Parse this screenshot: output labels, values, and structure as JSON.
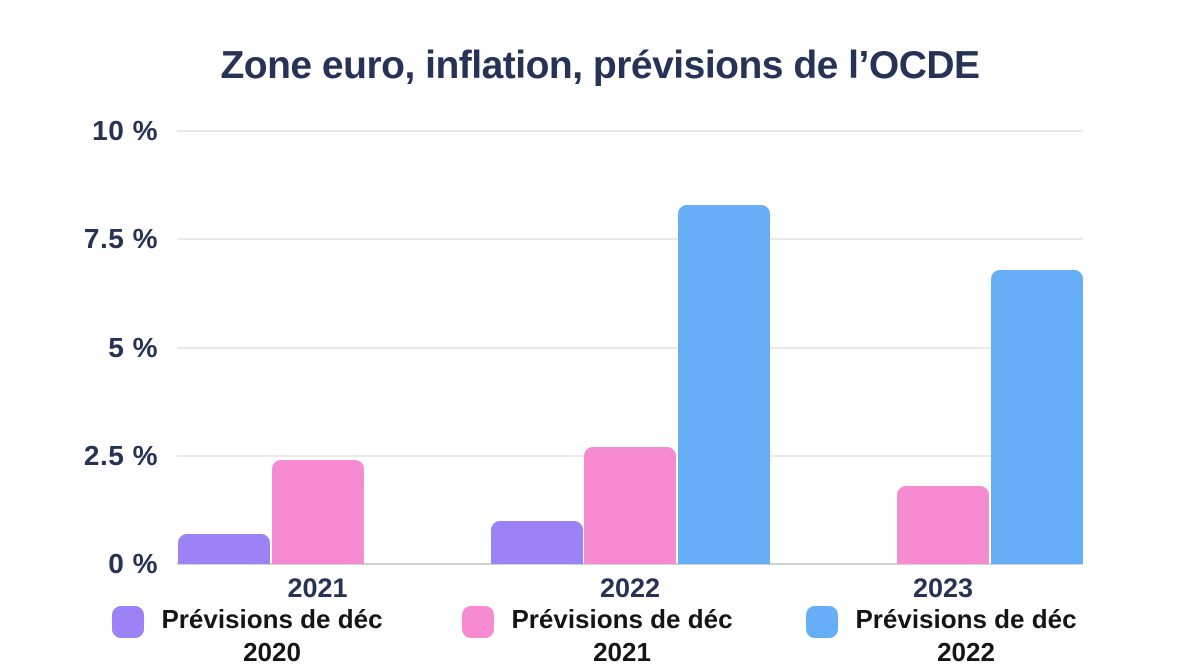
{
  "title": "Zone euro, inflation, prévisions de l’OCDE",
  "colors": {
    "title_text": "#263357",
    "axis_text": "#263357",
    "legend_text": "#151515",
    "gridline": "#e9e9e9",
    "baseline": "#d2d2d2",
    "background": "#ffffff",
    "series_purple": "#9b83f7",
    "series_pink": "#f78bd2",
    "series_blue": "#66aff6"
  },
  "chart_data": {
    "type": "bar",
    "title": "Zone euro, inflation, prévisions de l’OCDE",
    "xlabel": "",
    "ylabel": "",
    "ylim": [
      0,
      10
    ],
    "grid": true,
    "legend_position": "bottom",
    "categories": [
      "2021",
      "2022",
      "2023"
    ],
    "yticks": [
      {
        "value": 0,
        "label": "0 %"
      },
      {
        "value": 2.5,
        "label": "2.5 %"
      },
      {
        "value": 5,
        "label": "5 %"
      },
      {
        "value": 7.5,
        "label": "7.5 %"
      },
      {
        "value": 10,
        "label": "10 %"
      }
    ],
    "series": [
      {
        "name": "Prévisions de déc 2020",
        "legend_line1": "Prévisions de déc",
        "legend_line2": "2020",
        "color": "#9b83f7",
        "values": [
          0.7,
          1.0,
          null
        ]
      },
      {
        "name": "Prévisions de déc 2021",
        "legend_line1": "Prévisions de déc",
        "legend_line2": "2021",
        "color": "#f78bd2",
        "values": [
          2.4,
          2.7,
          1.8
        ]
      },
      {
        "name": "Prévisions de déc 2022",
        "legend_line1": "Prévisions de déc",
        "legend_line2": "2022",
        "color": "#66aff6",
        "values": [
          null,
          8.3,
          6.8
        ]
      }
    ]
  }
}
